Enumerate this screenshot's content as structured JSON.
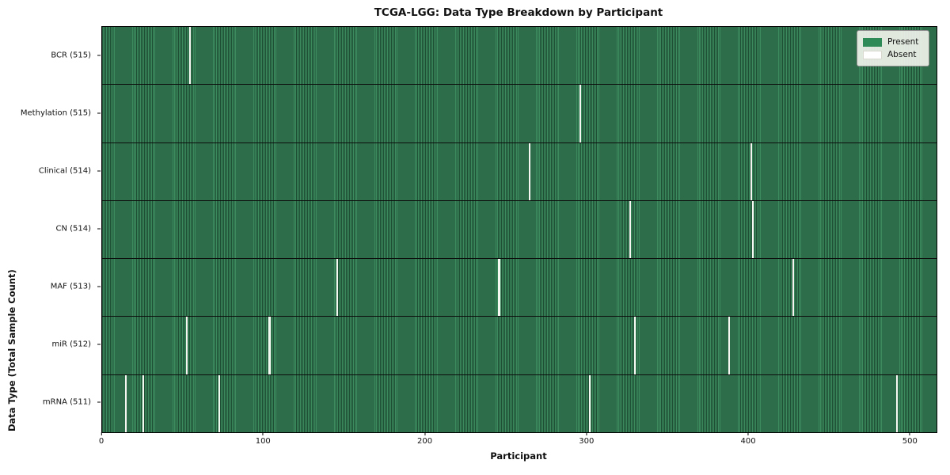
{
  "chart_data": {
    "type": "heatmap",
    "title": "TCGA-LGG: Data Type Breakdown by Participant",
    "xlabel": "Participant",
    "ylabel": "Data Type (Total Sample Count)",
    "x_ticks": [
      0,
      100,
      200,
      300,
      400,
      500
    ],
    "xlim": [
      0,
      516
    ],
    "total_participants": 516,
    "grid": false,
    "rows": [
      {
        "label": "BCR (515)",
        "data_type": "BCR",
        "present_count": 515,
        "absent_participants": [
          54
        ]
      },
      {
        "label": "Methylation (515)",
        "data_type": "Methylation",
        "present_count": 515,
        "absent_participants": [
          295
        ]
      },
      {
        "label": "Clinical (514)",
        "data_type": "Clinical",
        "present_count": 514,
        "absent_participants": [
          264,
          401
        ]
      },
      {
        "label": "CN (514)",
        "data_type": "CN",
        "present_count": 514,
        "absent_participants": [
          326,
          402
        ]
      },
      {
        "label": "MAF (513)",
        "data_type": "MAF",
        "present_count": 513,
        "absent_participants": [
          145,
          245,
          427
        ]
      },
      {
        "label": "miR (512)",
        "data_type": "miR",
        "present_count": 512,
        "absent_participants": [
          52,
          103,
          329,
          387
        ]
      },
      {
        "label": "mRNA (511)",
        "data_type": "mRNA",
        "present_count": 511,
        "absent_participants": [
          14,
          25,
          72,
          301,
          491
        ]
      }
    ],
    "legend": {
      "position": "upper right",
      "entries": [
        {
          "label": "Present",
          "color": "#2e8b57"
        },
        {
          "label": "Absent",
          "color": "#ffffff"
        }
      ]
    },
    "colors": {
      "present": "#2e8b57",
      "present_stripe_dark": "#1e4f35",
      "present_stripe_light": "#3c8b5e",
      "absent": "#f6f6f3",
      "frame": "#000000",
      "legend_background": "#eef1e9"
    }
  }
}
